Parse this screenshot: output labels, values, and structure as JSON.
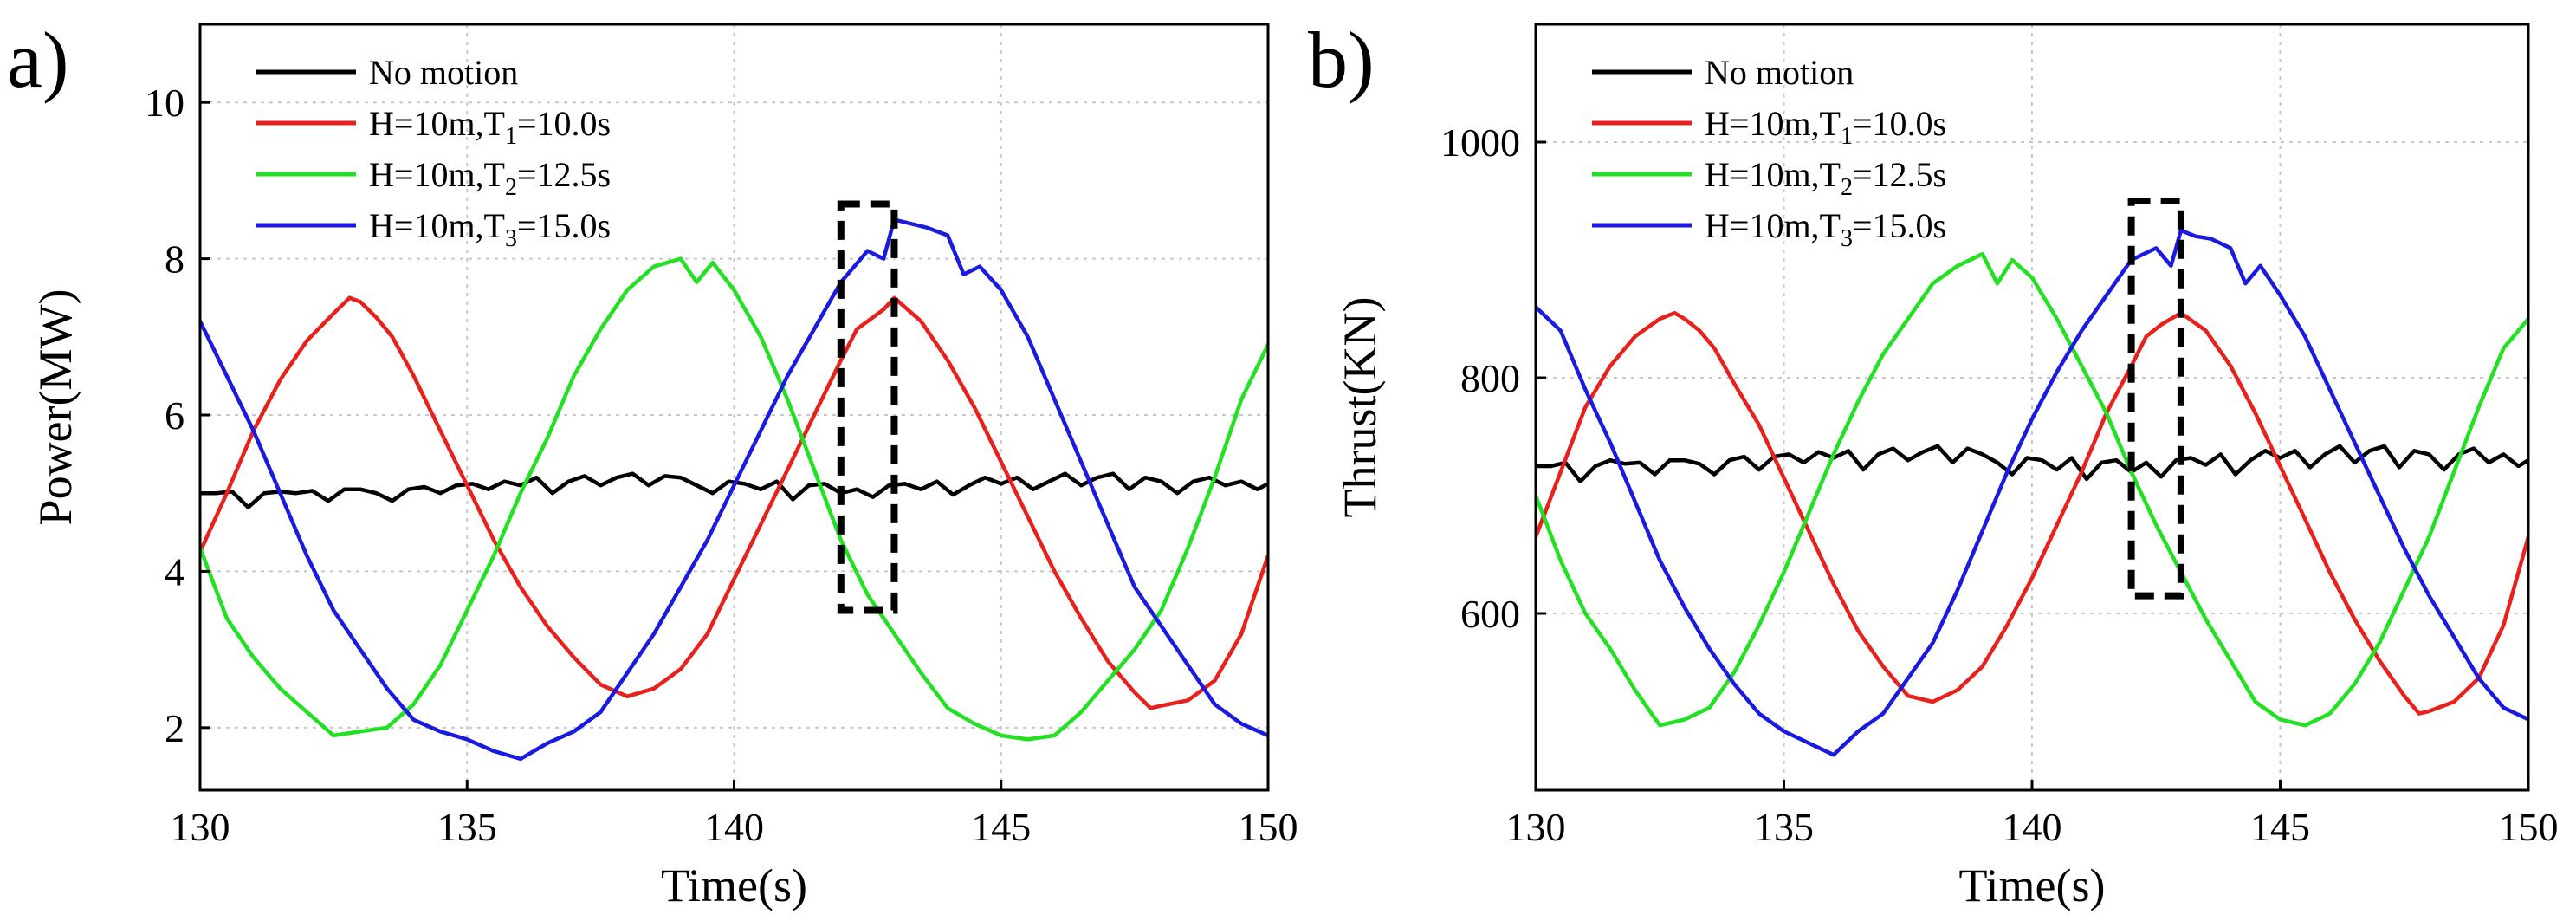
{
  "chart_data": [
    {
      "type": "line",
      "panel_label": "a)",
      "xlabel": "Time(s)",
      "ylabel": "Power(MW)",
      "xlim": [
        130,
        150
      ],
      "ylim": [
        1.2,
        11
      ],
      "xticks": [
        130,
        135,
        140,
        145,
        150
      ],
      "yticks": [
        2,
        4,
        6,
        8,
        10
      ],
      "grid": true,
      "legend": "top-left",
      "highlight": {
        "x": [
          142,
          143
        ],
        "y": [
          3.5,
          8.7
        ]
      },
      "series": [
        {
          "name": "No motion",
          "legend": {
            "main": "No motion",
            "sub": "",
            "tail": ""
          },
          "color": "#000000",
          "x": [
            130,
            130.3,
            130.6,
            130.9,
            131.2,
            131.5,
            131.8,
            132.1,
            132.4,
            132.7,
            133,
            133.3,
            133.6,
            133.9,
            134.2,
            134.5,
            134.8,
            135.1,
            135.4,
            135.7,
            136,
            136.3,
            136.6,
            136.9,
            137.2,
            137.5,
            137.8,
            138.1,
            138.4,
            138.7,
            139,
            139.3,
            139.6,
            139.9,
            140.2,
            140.5,
            140.8,
            141.1,
            141.4,
            141.7,
            142,
            142.3,
            142.6,
            142.9,
            143.2,
            143.5,
            143.8,
            144.1,
            144.4,
            144.7,
            145,
            145.3,
            145.6,
            145.9,
            146.2,
            146.5,
            146.8,
            147.1,
            147.4,
            147.7,
            148,
            148.3,
            148.6,
            148.9,
            149.2,
            149.5,
            149.8,
            150
          ],
          "y": [
            5.0,
            5.0,
            5.02,
            4.82,
            5.0,
            5.02,
            5.0,
            5.03,
            4.9,
            5.05,
            5.05,
            5.0,
            4.9,
            5.05,
            5.08,
            5.0,
            5.1,
            5.12,
            5.05,
            5.15,
            5.1,
            5.2,
            5.0,
            5.15,
            5.22,
            5.1,
            5.2,
            5.25,
            5.1,
            5.22,
            5.2,
            5.1,
            5.0,
            5.15,
            5.12,
            5.05,
            5.15,
            4.92,
            5.1,
            5.12,
            5.0,
            5.05,
            4.95,
            5.1,
            5.12,
            5.05,
            5.15,
            4.98,
            5.1,
            5.2,
            5.12,
            5.2,
            5.05,
            5.15,
            5.25,
            5.1,
            5.2,
            5.25,
            5.05,
            5.2,
            5.15,
            5.0,
            5.15,
            5.2,
            5.1,
            5.15,
            5.05,
            5.12
          ]
        },
        {
          "name": "H=10m,T1=10.0s",
          "legend": {
            "main": "H=10m,T",
            "sub": "1",
            "tail": "=10.0s"
          },
          "color": "#e8211d",
          "x": [
            130,
            130.5,
            131,
            131.5,
            132,
            132.5,
            132.8,
            133,
            133.3,
            133.6,
            134,
            134.5,
            135,
            135.5,
            136,
            136.5,
            137,
            137.5,
            138,
            138.5,
            139,
            139.5,
            140,
            140.5,
            141,
            141.5,
            142,
            142.3,
            142.6,
            142.8,
            143,
            143.5,
            144,
            144.5,
            145,
            145.5,
            146,
            146.5,
            147,
            147.5,
            147.8,
            148,
            148.5,
            149,
            149.5,
            150
          ],
          "y": [
            4.25,
            5.0,
            5.8,
            6.45,
            6.95,
            7.3,
            7.5,
            7.45,
            7.25,
            7.0,
            6.5,
            5.8,
            5.1,
            4.4,
            3.8,
            3.3,
            2.9,
            2.55,
            2.4,
            2.5,
            2.75,
            3.2,
            3.9,
            4.6,
            5.3,
            6.0,
            6.7,
            7.1,
            7.25,
            7.35,
            7.5,
            7.2,
            6.7,
            6.1,
            5.4,
            4.7,
            4.0,
            3.4,
            2.85,
            2.45,
            2.25,
            2.28,
            2.35,
            2.6,
            3.2,
            4.2
          ]
        },
        {
          "name": "H=10m,T2=12.5s",
          "legend": {
            "main": "H=10m,T",
            "sub": "2",
            "tail": "=12.5s"
          },
          "color": "#22e022",
          "x": [
            130,
            130.5,
            131,
            131.5,
            132,
            132.5,
            133,
            133.5,
            134,
            134.5,
            135,
            135.5,
            136,
            136.5,
            137,
            137.5,
            138,
            138.5,
            139,
            139.3,
            139.6,
            140,
            140.5,
            141,
            141.5,
            142,
            142.5,
            143,
            143.5,
            144,
            144.5,
            145,
            145.5,
            146,
            146.5,
            147,
            147.5,
            148,
            148.5,
            149,
            149.5,
            150
          ],
          "y": [
            4.3,
            3.4,
            2.9,
            2.5,
            2.2,
            1.9,
            1.95,
            2.0,
            2.3,
            2.8,
            3.5,
            4.2,
            5.0,
            5.7,
            6.5,
            7.1,
            7.6,
            7.9,
            8.0,
            7.7,
            7.95,
            7.6,
            7.0,
            6.2,
            5.3,
            4.4,
            3.7,
            3.2,
            2.7,
            2.25,
            2.05,
            1.9,
            1.85,
            1.9,
            2.2,
            2.6,
            3.0,
            3.5,
            4.3,
            5.2,
            6.2,
            6.9
          ]
        },
        {
          "name": "H=10m,T3=15.0s",
          "legend": {
            "main": "H=10m,T",
            "sub": "3",
            "tail": "=15.0s"
          },
          "color": "#1a1ae0",
          "x": [
            130,
            130.5,
            131,
            131.5,
            132,
            132.5,
            133,
            133.5,
            134,
            134.5,
            135,
            135.5,
            136,
            136.5,
            137,
            137.5,
            138,
            138.5,
            139,
            139.5,
            140,
            140.5,
            141,
            141.5,
            142,
            142.5,
            142.8,
            143,
            143.3,
            143.6,
            144,
            144.3,
            144.6,
            145,
            145.5,
            146,
            146.5,
            147,
            147.5,
            148,
            148.5,
            149,
            149.5,
            150
          ],
          "y": [
            7.2,
            6.5,
            5.8,
            5.0,
            4.2,
            3.5,
            3.0,
            2.5,
            2.1,
            1.95,
            1.85,
            1.7,
            1.6,
            1.8,
            1.95,
            2.2,
            2.7,
            3.2,
            3.8,
            4.4,
            5.1,
            5.8,
            6.5,
            7.1,
            7.7,
            8.1,
            8.0,
            8.5,
            8.45,
            8.4,
            8.3,
            7.8,
            7.9,
            7.6,
            7.0,
            6.2,
            5.4,
            4.6,
            3.8,
            3.3,
            2.8,
            2.3,
            2.05,
            1.9
          ]
        }
      ]
    },
    {
      "type": "line",
      "panel_label": "b)",
      "xlabel": "Time(s)",
      "ylabel": "Thrust(KN)",
      "xlim": [
        130,
        150
      ],
      "ylim": [
        450,
        1100
      ],
      "xticks": [
        130,
        135,
        140,
        145,
        150
      ],
      "yticks": [
        600,
        800,
        1000
      ],
      "grid": true,
      "legend": "top-left",
      "highlight": {
        "x": [
          142,
          143
        ],
        "y": [
          615,
          950
        ]
      },
      "series": [
        {
          "name": "No motion",
          "legend": {
            "main": "No motion",
            "sub": "",
            "tail": ""
          },
          "color": "#000000",
          "x": [
            130,
            130.3,
            130.6,
            130.9,
            131.2,
            131.5,
            131.8,
            132.1,
            132.4,
            132.7,
            133,
            133.3,
            133.6,
            133.9,
            134.2,
            134.5,
            134.8,
            135.1,
            135.4,
            135.7,
            136,
            136.3,
            136.6,
            136.9,
            137.2,
            137.5,
            137.8,
            138.1,
            138.4,
            138.7,
            139,
            139.3,
            139.6,
            139.9,
            140.2,
            140.5,
            140.8,
            141.1,
            141.4,
            141.7,
            142,
            142.3,
            142.6,
            142.9,
            143.2,
            143.5,
            143.8,
            144.1,
            144.4,
            144.7,
            145,
            145.3,
            145.6,
            145.9,
            146.2,
            146.5,
            146.8,
            147.1,
            147.4,
            147.7,
            148,
            148.3,
            148.6,
            148.9,
            149.2,
            149.5,
            149.8,
            150
          ],
          "y": [
            725,
            725,
            728,
            712,
            725,
            730,
            727,
            728,
            718,
            730,
            730,
            727,
            718,
            730,
            733,
            722,
            733,
            735,
            728,
            737,
            732,
            738,
            722,
            735,
            740,
            730,
            737,
            742,
            728,
            740,
            735,
            728,
            718,
            732,
            730,
            722,
            732,
            714,
            728,
            730,
            720,
            728,
            716,
            730,
            732,
            726,
            735,
            718,
            730,
            738,
            732,
            738,
            724,
            735,
            742,
            728,
            738,
            742,
            724,
            738,
            735,
            722,
            735,
            740,
            728,
            735,
            725,
            730
          ]
        },
        {
          "name": "H=10m,T1=10.0s",
          "legend": {
            "main": "H=10m,T",
            "sub": "1",
            "tail": "=10.0s"
          },
          "color": "#e8211d",
          "x": [
            130,
            130.5,
            131,
            131.5,
            132,
            132.5,
            132.8,
            133,
            133.3,
            133.6,
            134,
            134.5,
            135,
            135.5,
            136,
            136.5,
            137,
            137.5,
            138,
            138.5,
            139,
            139.5,
            140,
            140.5,
            141,
            141.5,
            142,
            142.3,
            142.6,
            142.8,
            143,
            143.5,
            144,
            144.5,
            145,
            145.5,
            146,
            146.5,
            147,
            147.5,
            147.8,
            148,
            148.5,
            149,
            149.5,
            150
          ],
          "y": [
            665,
            720,
            775,
            810,
            835,
            850,
            855,
            850,
            840,
            825,
            795,
            760,
            715,
            670,
            625,
            585,
            555,
            530,
            525,
            535,
            555,
            590,
            630,
            675,
            720,
            770,
            810,
            835,
            845,
            850,
            855,
            840,
            810,
            770,
            725,
            680,
            635,
            595,
            560,
            530,
            515,
            517,
            525,
            545,
            590,
            665
          ]
        },
        {
          "name": "H=10m,T2=12.5s",
          "legend": {
            "main": "H=10m,T",
            "sub": "2",
            "tail": "=12.5s"
          },
          "color": "#22e022",
          "x": [
            130,
            130.5,
            131,
            131.5,
            132,
            132.5,
            133,
            133.5,
            134,
            134.5,
            135,
            135.5,
            136,
            136.5,
            137,
            137.5,
            138,
            138.5,
            139,
            139.3,
            139.6,
            140,
            140.5,
            141,
            141.5,
            142,
            142.5,
            143,
            143.5,
            144,
            144.5,
            145,
            145.5,
            146,
            146.5,
            147,
            147.5,
            148,
            148.5,
            149,
            149.5,
            150
          ],
          "y": [
            700,
            645,
            600,
            570,
            535,
            505,
            510,
            520,
            550,
            590,
            635,
            685,
            735,
            780,
            820,
            850,
            880,
            895,
            905,
            880,
            900,
            885,
            850,
            810,
            770,
            720,
            675,
            635,
            595,
            560,
            525,
            510,
            505,
            515,
            540,
            575,
            620,
            665,
            720,
            775,
            825,
            850
          ]
        },
        {
          "name": "H=10m,T3=15.0s",
          "legend": {
            "main": "H=10m,T",
            "sub": "3",
            "tail": "=15.0s"
          },
          "color": "#1a1ae0",
          "x": [
            130,
            130.5,
            131,
            131.5,
            132,
            132.5,
            133,
            133.5,
            134,
            134.5,
            135,
            135.5,
            136,
            136.5,
            137,
            137.5,
            138,
            138.5,
            139,
            139.5,
            140,
            140.5,
            141,
            141.5,
            142,
            142.5,
            142.8,
            143,
            143.3,
            143.6,
            144,
            144.3,
            144.6,
            145,
            145.5,
            146,
            146.5,
            147,
            147.5,
            148,
            148.5,
            149,
            149.5,
            150
          ],
          "y": [
            860,
            840,
            790,
            745,
            695,
            645,
            605,
            570,
            540,
            515,
            500,
            490,
            480,
            500,
            515,
            545,
            575,
            620,
            670,
            720,
            765,
            805,
            840,
            870,
            900,
            910,
            895,
            925,
            920,
            918,
            910,
            880,
            895,
            870,
            835,
            790,
            745,
            700,
            655,
            615,
            580,
            545,
            520,
            510
          ]
        }
      ]
    }
  ]
}
